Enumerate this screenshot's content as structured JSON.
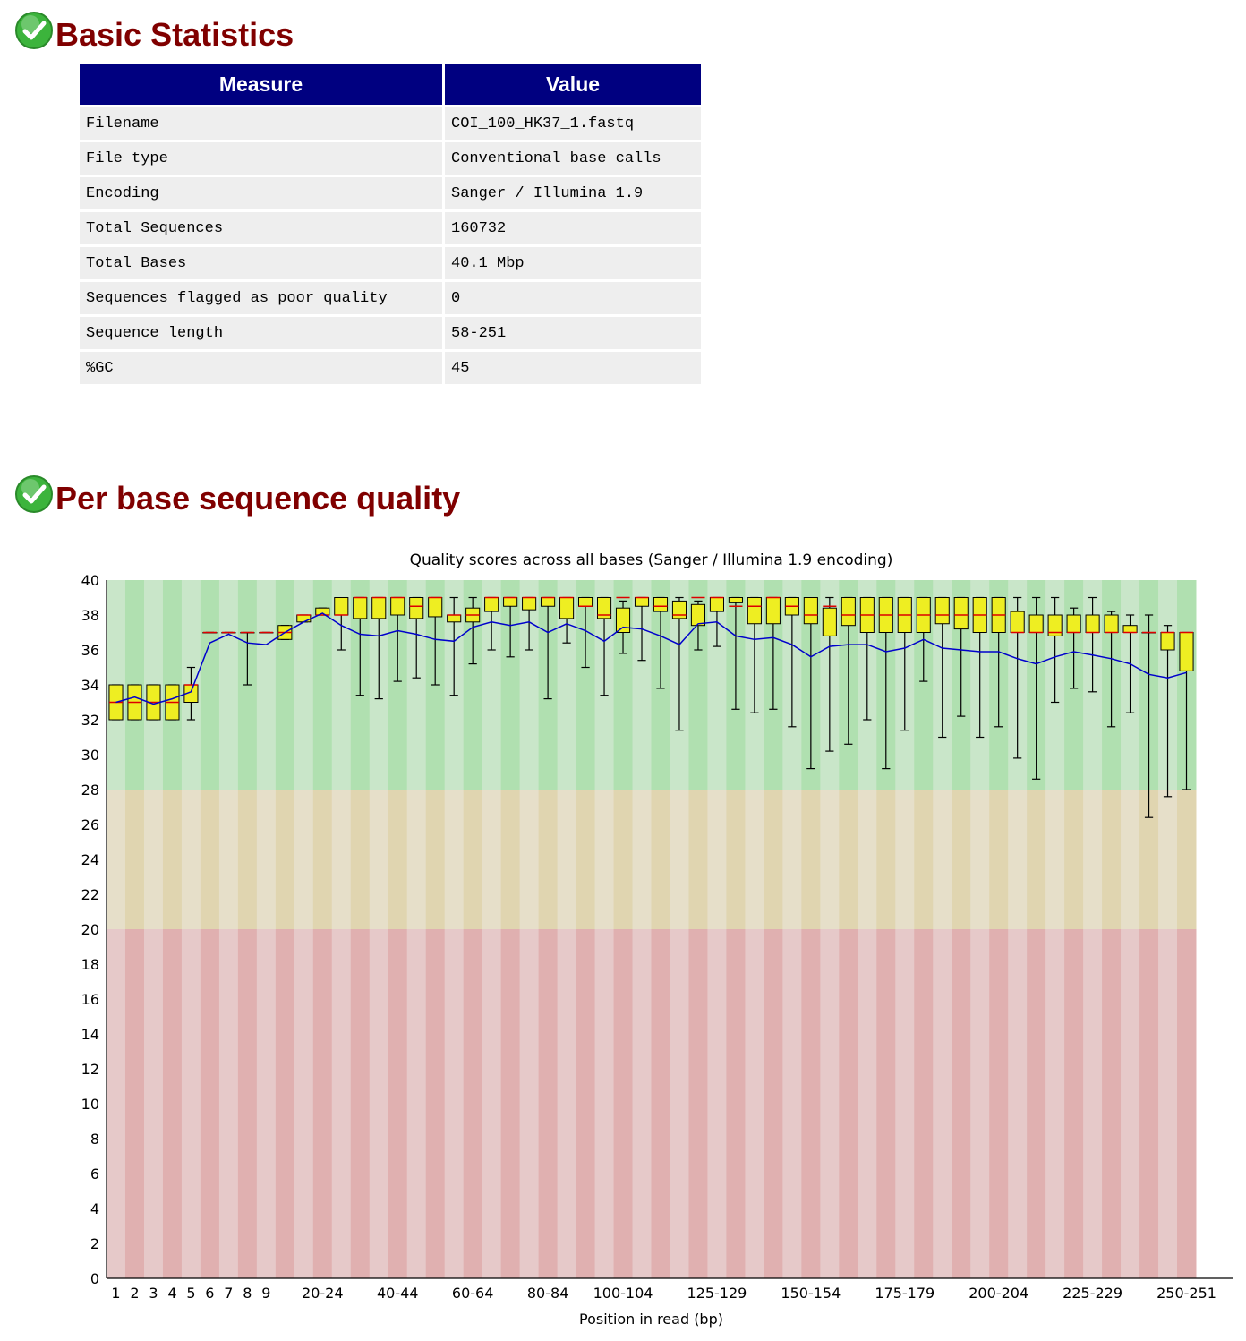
{
  "sections": [
    {
      "title": "Basic Statistics",
      "status_icon": "check-circle-icon",
      "status": "pass"
    },
    {
      "title": "Per base sequence quality",
      "status_icon": "check-circle-icon",
      "status": "pass"
    }
  ],
  "basic_statistics": {
    "headers": [
      "Measure",
      "Value"
    ],
    "rows": [
      [
        "Filename",
        "COI_100_HK37_1.fastq"
      ],
      [
        "File type",
        "Conventional base calls"
      ],
      [
        "Encoding",
        "Sanger / Illumina 1.9"
      ],
      [
        "Total Sequences",
        "160732"
      ],
      [
        "Total Bases",
        "40.1 Mbp"
      ],
      [
        "Sequences flagged as poor quality",
        "0"
      ],
      [
        "Sequence length",
        "58-251"
      ],
      [
        "%GC",
        "45"
      ]
    ]
  },
  "colors": {
    "heading": "#800000",
    "table_header_bg": "#000080",
    "table_cell_bg": "#eeeeee",
    "icon_green": "#3cb43c",
    "zone_good": [
      "#c9e6c9",
      "#b0e0b0"
    ],
    "zone_warn": [
      "#e6dfc9",
      "#e0d5b0"
    ],
    "zone_bad": [
      "#e6c9c9",
      "#e0b0b0"
    ],
    "box_fill": "#eeee22",
    "median": "#dd0000",
    "mean_line": "#0000cc"
  },
  "chart_data": {
    "type": "box",
    "title": "Quality scores across all bases (Sanger / Illumina 1.9 encoding)",
    "xlabel": "Position in read (bp)",
    "ylabel": "",
    "ylim": [
      0,
      40
    ],
    "yticks": [
      0,
      2,
      4,
      6,
      8,
      10,
      12,
      14,
      16,
      18,
      20,
      22,
      24,
      26,
      28,
      30,
      32,
      34,
      36,
      38,
      40
    ],
    "zones": [
      {
        "name": "good",
        "from": 28,
        "to": 40
      },
      {
        "name": "warning",
        "from": 20,
        "to": 28
      },
      {
        "name": "poor",
        "from": 0,
        "to": 20
      }
    ],
    "categories": [
      "1",
      "2",
      "3",
      "4",
      "5",
      "6",
      "7",
      "8",
      "9",
      "10-14",
      "15-19",
      "20-24",
      "25-29",
      "30-34",
      "35-39",
      "40-44",
      "45-49",
      "50-54",
      "55-59",
      "60-64",
      "65-69",
      "70-74",
      "75-79",
      "80-84",
      "85-89",
      "90-94",
      "95-99",
      "100-104",
      "105-109",
      "110-114",
      "115-119",
      "120-124",
      "125-129",
      "130-134",
      "135-139",
      "140-144",
      "145-149",
      "150-154",
      "155-159",
      "160-164",
      "165-169",
      "170-174",
      "175-179",
      "180-184",
      "185-189",
      "190-194",
      "195-199",
      "200-204",
      "205-209",
      "210-214",
      "215-219",
      "220-224",
      "225-229",
      "230-234",
      "235-239",
      "240-244",
      "245-249",
      "250-251"
    ],
    "tick_labels_shown": [
      "1",
      "2",
      "3",
      "4",
      "5",
      "6",
      "7",
      "8",
      "9",
      "20-24",
      "40-44",
      "60-64",
      "80-84",
      "100-104",
      "125-129",
      "150-154",
      "175-179",
      "200-204",
      "225-229",
      "250-251"
    ],
    "mean": [
      33.0,
      33.3,
      32.9,
      33.2,
      33.6,
      36.4,
      36.9,
      36.4,
      36.3,
      37.0,
      37.6,
      38.1,
      37.4,
      36.9,
      36.8,
      37.1,
      36.9,
      36.6,
      36.5,
      37.3,
      37.6,
      37.4,
      37.6,
      37.0,
      37.5,
      37.1,
      36.5,
      37.3,
      37.2,
      36.8,
      36.3,
      37.5,
      37.6,
      36.8,
      36.6,
      36.7,
      36.3,
      35.6,
      36.2,
      36.3,
      36.3,
      35.9,
      36.1,
      36.6,
      36.1,
      36.0,
      35.9,
      35.9,
      35.5,
      35.2,
      35.6,
      35.9,
      35.7,
      35.5,
      35.2,
      34.6,
      34.4,
      34.7
    ],
    "median": [
      33,
      33,
      33,
      33,
      34,
      37,
      37,
      37,
      37,
      37,
      38,
      38,
      38,
      39,
      39,
      39,
      38.5,
      39,
      38,
      38,
      39,
      39,
      39,
      39,
      39,
      38.5,
      38,
      39,
      39,
      38.5,
      38,
      39,
      39,
      38.5,
      38.5,
      39,
      38.5,
      38,
      38.5,
      38,
      38,
      38,
      38,
      38,
      38,
      38,
      38,
      38,
      37,
      37,
      37,
      37,
      37,
      37,
      37,
      37,
      37,
      37
    ],
    "q1": [
      32,
      32,
      32,
      32,
      33,
      37,
      37,
      37,
      37,
      36.6,
      37.6,
      38,
      38,
      37.8,
      37.8,
      38,
      37.8,
      37.9,
      37.6,
      37.6,
      38.2,
      38.5,
      38.3,
      38.5,
      37.8,
      38.5,
      37.8,
      37,
      38.5,
      38.2,
      37.8,
      37.4,
      38.2,
      38.7,
      37.5,
      37.5,
      38,
      37.5,
      36.8,
      37.4,
      37,
      37,
      37,
      37,
      37.5,
      37.2,
      37,
      37,
      37,
      37,
      36.8,
      37,
      37,
      37,
      37,
      37,
      36,
      34.8
    ],
    "q3": [
      34,
      34,
      34,
      34,
      34,
      37,
      37,
      37,
      37,
      37.4,
      38,
      38.4,
      39,
      39,
      39,
      39,
      39,
      39,
      38,
      38.4,
      39,
      39,
      39,
      39,
      39,
      39,
      39,
      38.4,
      39,
      39,
      38.8,
      38.6,
      39,
      39,
      39,
      39,
      39,
      39,
      38.4,
      39,
      39,
      39,
      39,
      39,
      39,
      39,
      39,
      39,
      38.2,
      38,
      38,
      38,
      38,
      38,
      37.4,
      37,
      37,
      37
    ],
    "whisker_low": [
      32,
      32,
      32,
      32,
      32,
      37,
      37,
      34,
      37,
      36.6,
      37.6,
      38,
      36,
      33.4,
      33.2,
      34.2,
      34.4,
      34,
      33.4,
      35.2,
      36,
      35.6,
      36,
      33.2,
      36.4,
      35,
      33.4,
      35.8,
      35.4,
      33.8,
      31.4,
      36,
      36.2,
      32.6,
      32.4,
      32.6,
      31.6,
      29.2,
      30.2,
      30.6,
      32,
      29.2,
      31.4,
      34.2,
      31,
      32.2,
      31,
      31.6,
      29.8,
      28.6,
      33,
      33.8,
      33.6,
      31.6,
      32.4,
      26.4,
      27.6,
      28
    ],
    "whisker_high": [
      34,
      34,
      34,
      34,
      35,
      37,
      37,
      37,
      37,
      37.4,
      38,
      38.4,
      38.4,
      39,
      39,
      39,
      39,
      39,
      39,
      39,
      39,
      39,
      39,
      39,
      39,
      39,
      39,
      38.8,
      39,
      39,
      39,
      38.8,
      39,
      39,
      39,
      39,
      39,
      38.6,
      39,
      39,
      39,
      39,
      39,
      39,
      39,
      39,
      39,
      39,
      39,
      39,
      39,
      38.4,
      39,
      38.2,
      38,
      38,
      37.4,
      37
    ]
  }
}
